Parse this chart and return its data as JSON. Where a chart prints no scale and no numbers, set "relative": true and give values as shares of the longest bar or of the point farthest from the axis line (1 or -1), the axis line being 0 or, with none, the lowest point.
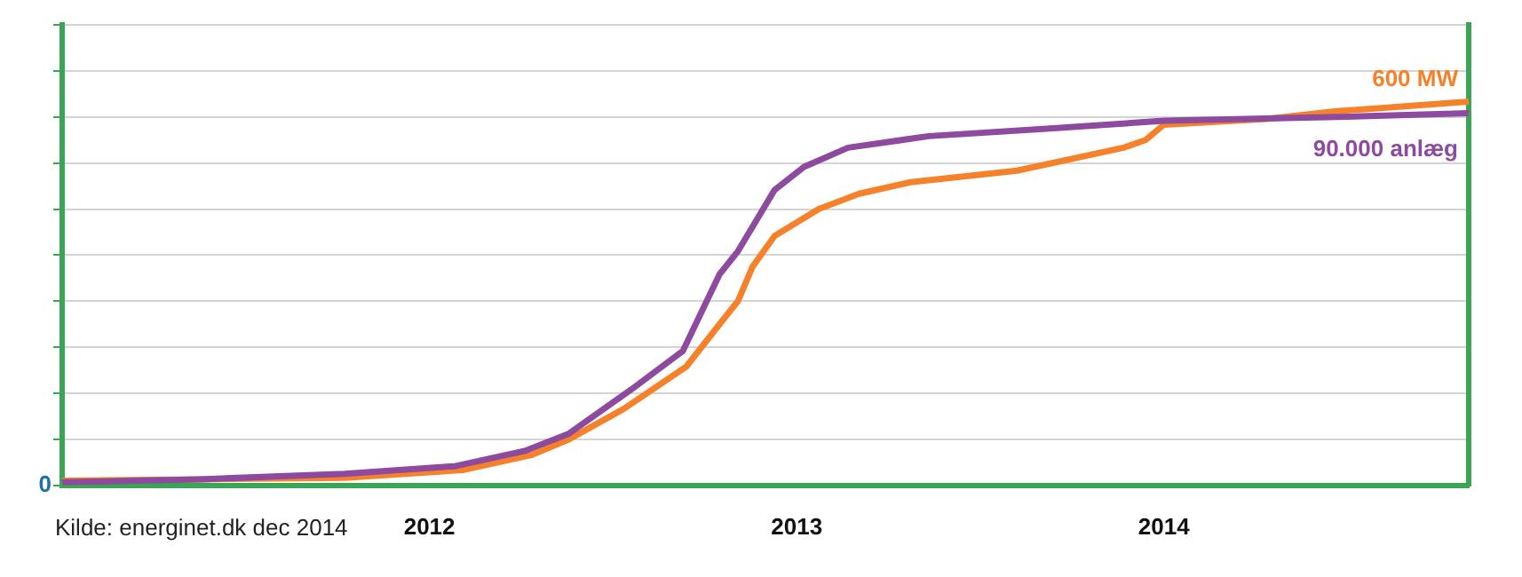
{
  "chart_data": {
    "type": "line",
    "relative": true,
    "xlim": [
      2011,
      2014.83
    ],
    "xticks": [
      2012,
      2013,
      2014
    ],
    "grid": "y",
    "legend": false,
    "marker": "none",
    "line_style": "solid",
    "annotations": [
      "Kilde: energinet.dk dec 2014",
      "0"
    ],
    "series": [
      {
        "name": "600 MW",
        "color": "#f5822a",
        "x": [
          2011,
          2011.38,
          2011.77,
          2012.09,
          2012.28,
          2012.38,
          2012.53,
          2012.7,
          2012.79,
          2012.84,
          2012.88,
          2012.94,
          2013.06,
          2013.17,
          2013.31,
          2013.6,
          2013.89,
          2013.95,
          2014,
          2014.28,
          2014.47,
          2014.83
        ],
        "values": [
          0.012,
          0.016,
          0.02,
          0.04,
          0.08,
          0.12,
          0.2,
          0.31,
          0.42,
          0.48,
          0.57,
          0.65,
          0.72,
          0.76,
          0.79,
          0.82,
          0.88,
          0.9,
          0.94,
          0.955,
          0.975,
          1
        ]
      },
      {
        "name": "90.000 anlæg",
        "color": "#8e4a9e",
        "x": [
          2011,
          2011.38,
          2011.77,
          2012.07,
          2012.26,
          2012.38,
          2012.55,
          2012.69,
          2012.79,
          2012.84,
          2012.94,
          2013.02,
          2013.14,
          2013.36,
          2013.69,
          2014,
          2014.47,
          2014.83
        ],
        "values": [
          0.008,
          0.016,
          0.03,
          0.05,
          0.09,
          0.135,
          0.25,
          0.35,
          0.55,
          0.61,
          0.77,
          0.83,
          0.88,
          0.91,
          0.93,
          0.95,
          0.96,
          0.97
        ]
      }
    ]
  }
}
